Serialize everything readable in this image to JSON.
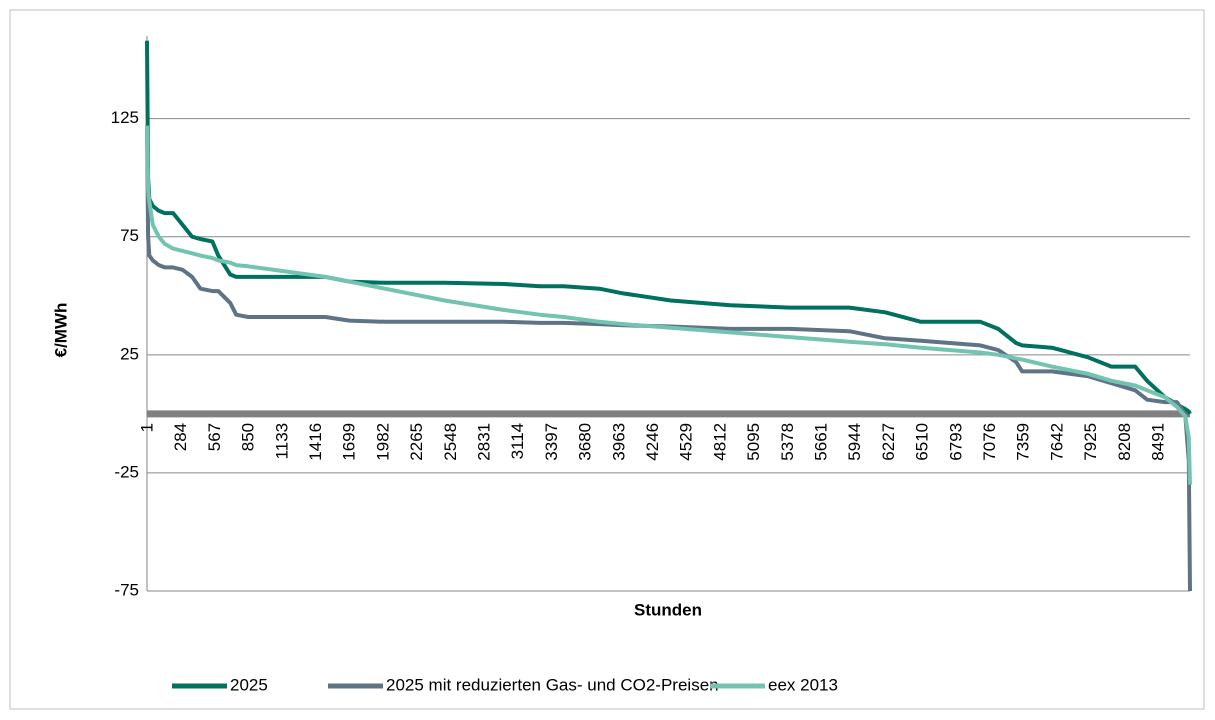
{
  "chart_data": {
    "type": "line",
    "y_label": "€/MWh",
    "x_label": "Stunden",
    "ylim": [
      -75,
      160
    ],
    "yticks": [
      -75,
      -25,
      25,
      75,
      125
    ],
    "grid": true,
    "xlim": [
      1,
      8760
    ],
    "xticks": [
      1,
      284,
      567,
      850,
      1133,
      1416,
      1699,
      1982,
      2265,
      2548,
      2831,
      3114,
      3397,
      3680,
      3963,
      4246,
      4529,
      4812,
      5095,
      5378,
      5661,
      5944,
      6227,
      6510,
      6793,
      7076,
      7359,
      7642,
      7925,
      8208,
      8491
    ],
    "legend": "bottom",
    "x": [
      1,
      10,
      20,
      50,
      100,
      150,
      220,
      300,
      380,
      450,
      550,
      600,
      700,
      750,
      850,
      1500,
      1700,
      2000,
      2500,
      3000,
      3300,
      3500,
      3800,
      4000,
      4400,
      4900,
      5400,
      5900,
      6200,
      6500,
      7000,
      7150,
      7300,
      7350,
      7600,
      7900,
      8100,
      8300,
      8400,
      8550,
      8650,
      8720,
      8750,
      8760
    ],
    "series": [
      {
        "name": "2025",
        "color": "#00705f",
        "values": [
          158,
          100,
          91,
          88,
          86,
          85,
          85,
          80,
          75,
          74,
          73,
          67,
          59,
          58,
          58,
          58,
          56,
          55.5,
          55.5,
          55,
          54,
          54,
          53,
          51,
          48,
          46,
          45,
          45,
          43,
          39,
          39,
          36,
          30,
          29,
          28,
          24,
          20,
          20,
          14,
          7,
          4,
          2,
          1,
          0
        ]
      },
      {
        "name": "2025 mit reduzierten Gas- und CO2-Preisen",
        "color": "#5f7387",
        "values": [
          122,
          75,
          67,
          65,
          63,
          62,
          62,
          61,
          58,
          53,
          52,
          52,
          47,
          42,
          41,
          41,
          39.5,
          39,
          39,
          39,
          38.5,
          38.5,
          38,
          37.5,
          37,
          36,
          36,
          35,
          32,
          31,
          29,
          27,
          22,
          18,
          18,
          16,
          13,
          10,
          6,
          5,
          5,
          0,
          -20,
          -75
        ]
      },
      {
        "name": "eex 2013",
        "color": "#72c4b0",
        "values": [
          122,
          95,
          90,
          80,
          75,
          72,
          70,
          69,
          68,
          67,
          66,
          65,
          64,
          63,
          62.5,
          58,
          56,
          53,
          48,
          44,
          42,
          41,
          39,
          38,
          36.5,
          34.5,
          32.5,
          30.5,
          29.5,
          28,
          26,
          25,
          23.5,
          23,
          20,
          17,
          14,
          12,
          10,
          7,
          3,
          -1,
          -10,
          -30
        ]
      }
    ]
  }
}
